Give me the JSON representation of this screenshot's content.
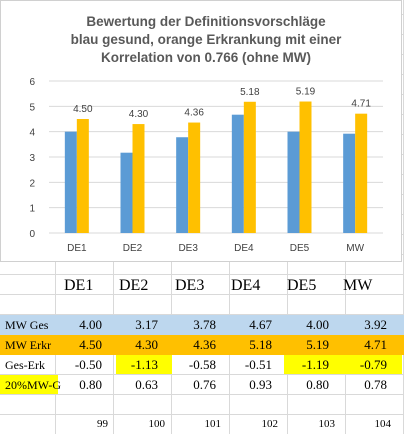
{
  "chart_data": {
    "type": "bar",
    "title_lines": [
      "Bewertung der Definitionsvorschläge",
      "blau gesund, orange Erkrankung mit einer",
      "Korrelation von 0.766 (ohne MW)"
    ],
    "categories": [
      "DE1",
      "DE2",
      "DE3",
      "DE4",
      "DE5",
      "MW"
    ],
    "series": [
      {
        "values": [
          4.0,
          3.17,
          3.78,
          4.67,
          4.0,
          3.92
        ],
        "color": "#5b9bd5"
      },
      {
        "values": [
          4.5,
          4.3,
          4.36,
          5.18,
          5.19,
          4.71
        ],
        "color": "#ffc000"
      }
    ],
    "data_labels": [
      "4.50",
      "4.30",
      "4.36",
      "5.18",
      "5.19",
      "4.71"
    ],
    "yticks": [
      "0",
      "1",
      "2",
      "3",
      "4",
      "5",
      "6"
    ],
    "ylim": [
      0,
      6
    ],
    "grid": true,
    "legend": "none"
  },
  "table": {
    "headers": [
      "DE1",
      "DE2",
      "DE3",
      "DE4",
      "DE5",
      "MW"
    ],
    "rows": [
      {
        "label": "MW Ges",
        "values": [
          "4.00",
          "3.17",
          "3.78",
          "4.67",
          "4.00",
          "3.92"
        ],
        "bg": "#bdd7ee"
      },
      {
        "label": "MW Erkr",
        "values": [
          "4.50",
          "4.30",
          "4.36",
          "5.18",
          "5.19",
          "4.71"
        ],
        "bg": "#ffc000"
      },
      {
        "label": "Ges-Erk",
        "values": [
          "-0.50",
          "-1.13",
          "-0.58",
          "-0.51",
          "-1.19",
          "-0.79"
        ],
        "highlight": [
          1,
          4,
          5
        ],
        "highlight_color": "#ffff00"
      },
      {
        "label": "20%MW-G",
        "values": [
          "0.80",
          "0.63",
          "0.76",
          "0.93",
          "0.80",
          "0.78"
        ],
        "label_bg": "#ffff00"
      }
    ],
    "footer": [
      "99",
      "100",
      "101",
      "102",
      "103",
      "104"
    ]
  }
}
